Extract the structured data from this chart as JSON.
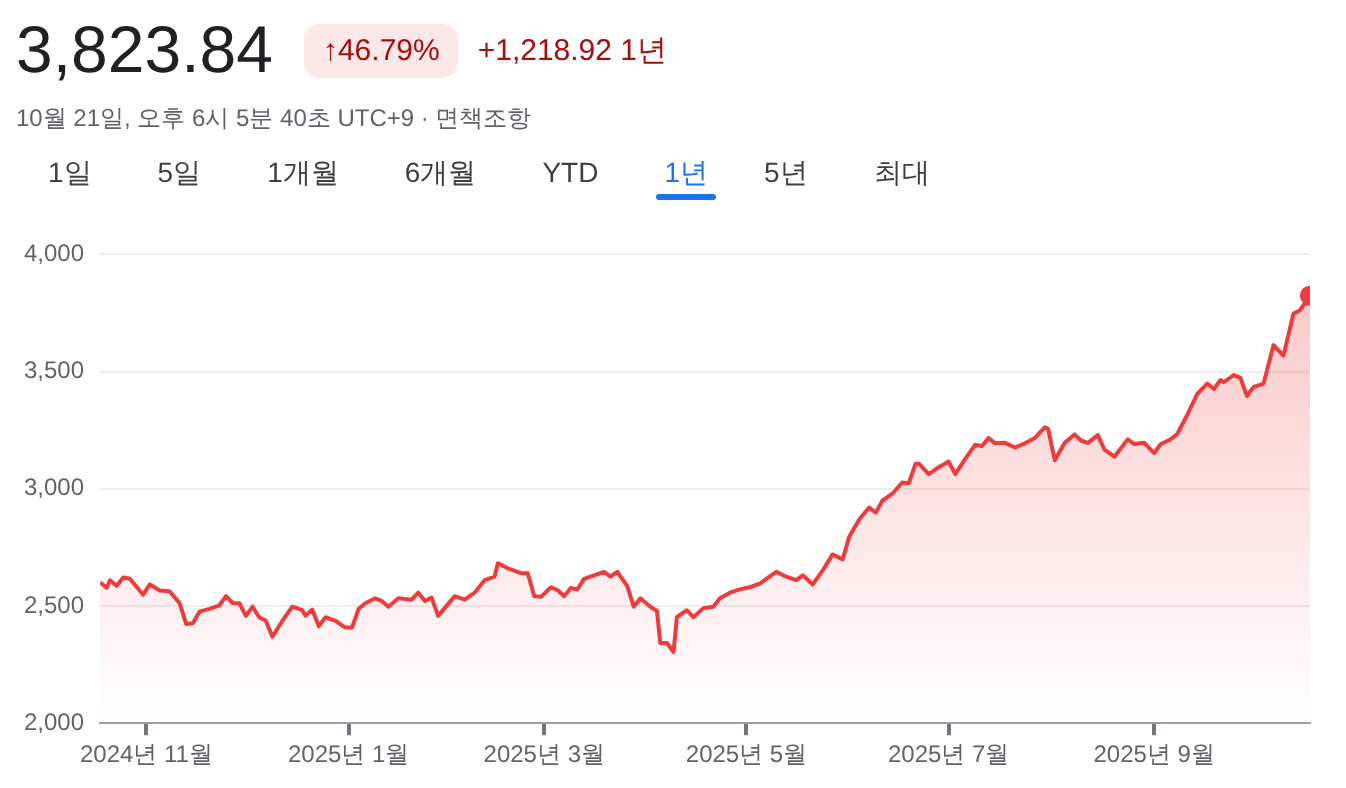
{
  "chart_data": {
    "type": "area",
    "title": "3,823.84",
    "subtitle": "10월 21일, 오후 6시 5분 40초 UTC+9 · 면책조항",
    "annotations": [
      "↑46.79%",
      "+1,218.92 1년",
      "1일",
      "5일",
      "1개월",
      "6개월",
      "YTD",
      "1년",
      "5년",
      "최대"
    ],
    "x": [
      "2024-10-18",
      "2024-10-20",
      "2024-10-21",
      "2024-10-23",
      "2024-10-25",
      "2024-10-27",
      "2024-10-31",
      "2024-11-02",
      "2024-11-05",
      "2024-11-08",
      "2024-11-11",
      "2024-11-13",
      "2024-11-15",
      "2024-11-17",
      "2024-11-20",
      "2024-11-23",
      "2024-11-25",
      "2024-11-27",
      "2024-11-29",
      "2024-12-01",
      "2024-12-03",
      "2024-12-05",
      "2024-12-07",
      "2024-12-09",
      "2024-12-12",
      "2024-12-15",
      "2024-12-18",
      "2024-12-19",
      "2024-12-21",
      "2024-12-23",
      "2024-12-25",
      "2024-12-28",
      "2024-12-31",
      "2025-01-02",
      "2025-01-04",
      "2025-01-06",
      "2025-01-09",
      "2025-01-11",
      "2025-01-13",
      "2025-01-16",
      "2025-01-20",
      "2025-01-22",
      "2025-01-24",
      "2025-01-26",
      "2025-01-28",
      "2025-02-02",
      "2025-02-05",
      "2025-02-08",
      "2025-02-11",
      "2025-02-14",
      "2025-02-15",
      "2025-02-18",
      "2025-02-22",
      "2025-02-24",
      "2025-02-26",
      "2025-02-28",
      "2025-03-03",
      "2025-03-05",
      "2025-03-07",
      "2025-03-09",
      "2025-03-11",
      "2025-03-13",
      "2025-03-16",
      "2025-03-19",
      "2025-03-21",
      "2025-03-23",
      "2025-03-26",
      "2025-03-28",
      "2025-03-30",
      "2025-04-02",
      "2025-04-04",
      "2025-04-05",
      "2025-04-07",
      "2025-04-09",
      "2025-04-10",
      "2025-04-13",
      "2025-04-15",
      "2025-04-18",
      "2025-04-21",
      "2025-04-23",
      "2025-04-26",
      "2025-04-29",
      "2025-05-02",
      "2025-05-05",
      "2025-05-07",
      "2025-05-10",
      "2025-05-13",
      "2025-05-16",
      "2025-05-18",
      "2025-05-21",
      "2025-05-24",
      "2025-05-27",
      "2025-05-30",
      "2025-06-01",
      "2025-06-04",
      "2025-06-07",
      "2025-06-09",
      "2025-06-11",
      "2025-06-14",
      "2025-06-17",
      "2025-06-19",
      "2025-06-21",
      "2025-06-22",
      "2025-06-25",
      "2025-06-28",
      "2025-07-01",
      "2025-07-03",
      "2025-07-06",
      "2025-07-09",
      "2025-07-11",
      "2025-07-13",
      "2025-07-15",
      "2025-07-18",
      "2025-07-21",
      "2025-07-24",
      "2025-07-27",
      "2025-07-30",
      "2025-07-31",
      "2025-08-02",
      "2025-08-05",
      "2025-08-08",
      "2025-08-10",
      "2025-08-12",
      "2025-08-15",
      "2025-08-17",
      "2025-08-20",
      "2025-08-24",
      "2025-08-26",
      "2025-08-29",
      "2025-09-01",
      "2025-09-03",
      "2025-09-06",
      "2025-09-08",
      "2025-09-11",
      "2025-09-14",
      "2025-09-17",
      "2025-09-19",
      "2025-09-21",
      "2025-09-22",
      "2025-09-25",
      "2025-09-27",
      "2025-09-29",
      "2025-10-01",
      "2025-10-04",
      "2025-10-07",
      "2025-10-10",
      "2025-10-13",
      "2025-10-15",
      "2025-10-18"
    ],
    "series": [
      {
        "color": "#ee3b3b",
        "values": [
          2601,
          2578,
          2610,
          2586,
          2622,
          2616,
          2548,
          2592,
          2566,
          2563,
          2512,
          2423,
          2426,
          2476,
          2488,
          2503,
          2542,
          2512,
          2512,
          2458,
          2497,
          2452,
          2437,
          2369,
          2437,
          2497,
          2482,
          2458,
          2485,
          2414,
          2452,
          2437,
          2408,
          2408,
          2488,
          2512,
          2533,
          2521,
          2497,
          2533,
          2527,
          2557,
          2521,
          2536,
          2458,
          2542,
          2527,
          2557,
          2610,
          2625,
          2682,
          2661,
          2640,
          2640,
          2542,
          2539,
          2580,
          2568,
          2542,
          2577,
          2571,
          2616,
          2631,
          2646,
          2625,
          2646,
          2586,
          2497,
          2533,
          2497,
          2479,
          2342,
          2342,
          2304,
          2452,
          2482,
          2452,
          2491,
          2497,
          2533,
          2557,
          2571,
          2580,
          2595,
          2616,
          2646,
          2625,
          2610,
          2631,
          2592,
          2652,
          2720,
          2699,
          2795,
          2869,
          2920,
          2899,
          2949,
          2979,
          3027,
          3024,
          3107,
          3107,
          3063,
          3092,
          3116,
          3063,
          3128,
          3188,
          3182,
          3217,
          3194,
          3196,
          3176,
          3194,
          3217,
          3262,
          3256,
          3122,
          3196,
          3232,
          3205,
          3196,
          3229,
          3167,
          3137,
          3211,
          3191,
          3196,
          3152,
          3191,
          3211,
          3235,
          3316,
          3405,
          3449,
          3426,
          3464,
          3455,
          3485,
          3473,
          3396,
          3435,
          3449,
          3613,
          3568,
          3747,
          3762,
          3823.84
        ]
      }
    ],
    "xlim": [
      "2024-10-18",
      "2025-10-18"
    ],
    "xticks": [
      {
        "value": "2024-11-01",
        "label": "2024년 11월"
      },
      {
        "value": "2025-01-01",
        "label": "2025년 1월"
      },
      {
        "value": "2025-03-01",
        "label": "2025년 3월"
      },
      {
        "value": "2025-05-01",
        "label": "2025년 5월"
      },
      {
        "value": "2025-07-01",
        "label": "2025년 7월"
      },
      {
        "value": "2025-09-01",
        "label": "2025년 9월"
      }
    ],
    "ylim": [
      2000,
      4000
    ],
    "yticks": [
      {
        "value": 2000,
        "label": "2,000"
      },
      {
        "value": 2500,
        "label": "2,500"
      },
      {
        "value": 3000,
        "label": "3,000"
      },
      {
        "value": 3500,
        "label": "3,500"
      },
      {
        "value": 4000,
        "label": "4,000"
      }
    ],
    "grid": "y"
  }
}
